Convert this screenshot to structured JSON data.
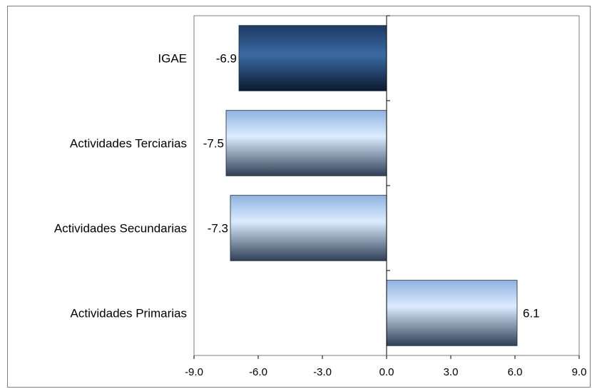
{
  "chart_data": {
    "type": "bar",
    "orientation": "horizontal",
    "categories": [
      "IGAE",
      "Actividades Terciarias",
      "Actividades Secundarias",
      "Actividades Primarias"
    ],
    "values": [
      -6.9,
      -7.5,
      -7.3,
      6.1
    ],
    "data_labels": [
      "-6.9",
      "-7.5",
      "-7.3",
      "6.1"
    ],
    "highlight_category": "IGAE",
    "xlim": [
      -9.0,
      9.0
    ],
    "x_ticks": [
      "-9.0",
      "-6.0",
      "-3.0",
      "0.0",
      "3.0",
      "6.0",
      "9.0"
    ],
    "x_tick_values": [
      -9,
      -6,
      -3,
      0,
      3,
      6,
      9
    ],
    "grid": false,
    "title": "",
    "xlabel": "",
    "ylabel": ""
  },
  "colors": {
    "highlight_top": "#1d3a63",
    "highlight_mid": "#3a6aa3",
    "highlight_bottom": "#0c1a30",
    "bar_top": "#8fb3e0",
    "bar_mid": "#dcecff",
    "bar_bottom": "#2f3f55"
  }
}
